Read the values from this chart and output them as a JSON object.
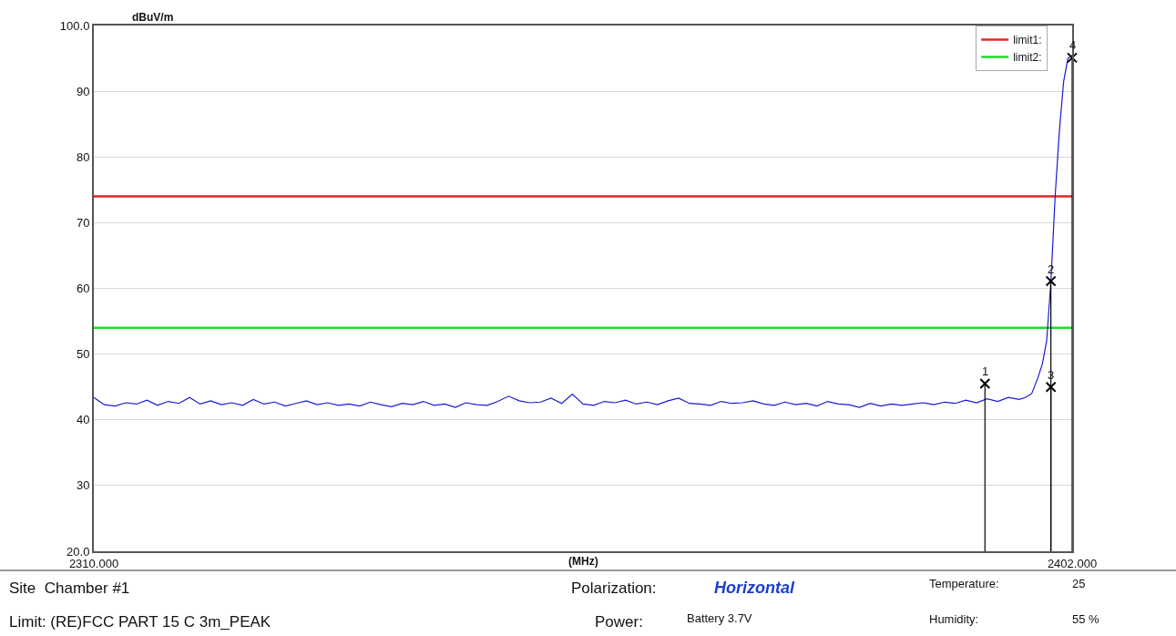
{
  "chart_data": {
    "type": "line",
    "ylabel": "dBuV/m",
    "xlabel": "(MHz)",
    "xlim": [
      2310,
      2402
    ],
    "xticks": [
      {
        "value": 2310,
        "label": "2310.000"
      },
      {
        "value": 2402,
        "label": "2402.000"
      }
    ],
    "ylim": [
      20,
      100
    ],
    "yticks": [
      {
        "value": 20,
        "label": "20.0"
      },
      30,
      40,
      50,
      60,
      70,
      80,
      90,
      {
        "value": 100,
        "label": "100.0"
      }
    ],
    "grid": "y",
    "legend": "top right",
    "series": [
      {
        "color": "#1a1ad6",
        "x": [
          2310,
          2311,
          2312,
          2313,
          2314,
          2315,
          2316,
          2317,
          2318,
          2319,
          2320,
          2321,
          2322,
          2323,
          2324,
          2325,
          2326,
          2327,
          2328,
          2329,
          2330,
          2331,
          2332,
          2333,
          2334,
          2335,
          2336,
          2337,
          2338,
          2339,
          2340,
          2341,
          2342,
          2343,
          2344,
          2345,
          2346,
          2347,
          2348,
          2349,
          2350,
          2351,
          2352,
          2353,
          2354,
          2355,
          2356,
          2357,
          2358,
          2359,
          2360,
          2361,
          2362,
          2363,
          2364,
          2365,
          2366,
          2367,
          2368,
          2369,
          2370,
          2371,
          2372,
          2373,
          2374,
          2375,
          2376,
          2377,
          2378,
          2379,
          2380,
          2381,
          2382,
          2383,
          2384,
          2385,
          2386,
          2387,
          2388,
          2389,
          2390,
          2391,
          2392,
          2393,
          2394,
          2395,
          2396,
          2397,
          2397.6,
          2398.2,
          2398.8,
          2399.2,
          2399.6,
          2400.0,
          2400.4,
          2400.8,
          2401.2,
          2401.6,
          2402.0
        ],
        "values": [
          43.4,
          42.3,
          42.1,
          42.6,
          42.4,
          43.0,
          42.2,
          42.8,
          42.5,
          43.4,
          42.4,
          42.9,
          42.3,
          42.6,
          42.2,
          43.1,
          42.4,
          42.7,
          42.1,
          42.5,
          42.9,
          42.3,
          42.6,
          42.2,
          42.4,
          42.1,
          42.7,
          42.3,
          42.0,
          42.5,
          42.3,
          42.8,
          42.2,
          42.4,
          41.9,
          42.6,
          42.3,
          42.2,
          42.8,
          43.6,
          42.9,
          42.6,
          42.7,
          43.3,
          42.5,
          43.9,
          42.4,
          42.2,
          42.8,
          42.6,
          43.0,
          42.4,
          42.7,
          42.3,
          42.9,
          43.3,
          42.5,
          42.4,
          42.2,
          42.8,
          42.5,
          42.6,
          42.9,
          42.4,
          42.2,
          42.7,
          42.3,
          42.5,
          42.1,
          42.8,
          42.4,
          42.3,
          41.9,
          42.5,
          42.1,
          42.4,
          42.2,
          42.4,
          42.6,
          42.3,
          42.7,
          42.5,
          43.0,
          42.6,
          43.2,
          42.8,
          43.4,
          43.1,
          43.4,
          44.0,
          46.5,
          48.5,
          52.0,
          61.0,
          74.0,
          84.0,
          91.5,
          95.0,
          95.5
        ]
      },
      {
        "type": "lollipop",
        "color": "#000000",
        "marker": "cross",
        "x": [
          2393.8,
          2400.0,
          2400.0,
          2402.0
        ],
        "values": [
          45.5,
          61.1,
          45.0,
          95.1
        ]
      }
    ],
    "ref_lines": [
      {
        "axis": "y",
        "value": 74,
        "label": "limit1:",
        "color": "#e02828"
      },
      {
        "axis": "y",
        "value": 54,
        "label": "limit2:",
        "color": "#28d828"
      }
    ],
    "annotations": [
      {
        "text": "1",
        "x": 2393.8,
        "y": 45.5
      },
      {
        "text": "2",
        "x": 2400.0,
        "y": 61.1
      },
      {
        "text": "3",
        "x": 2400.0,
        "y": 45.0
      },
      {
        "text": "4",
        "x": 2402.0,
        "y": 95.1
      },
      "Site  Chamber #1",
      "Polarization:",
      "Horizontal",
      "Temperature:",
      "25",
      "Limit: (RE)FCC PART 15 C 3m_PEAK",
      "Power:",
      "Battery 3.7V",
      "Humidity:",
      "55 %"
    ]
  }
}
